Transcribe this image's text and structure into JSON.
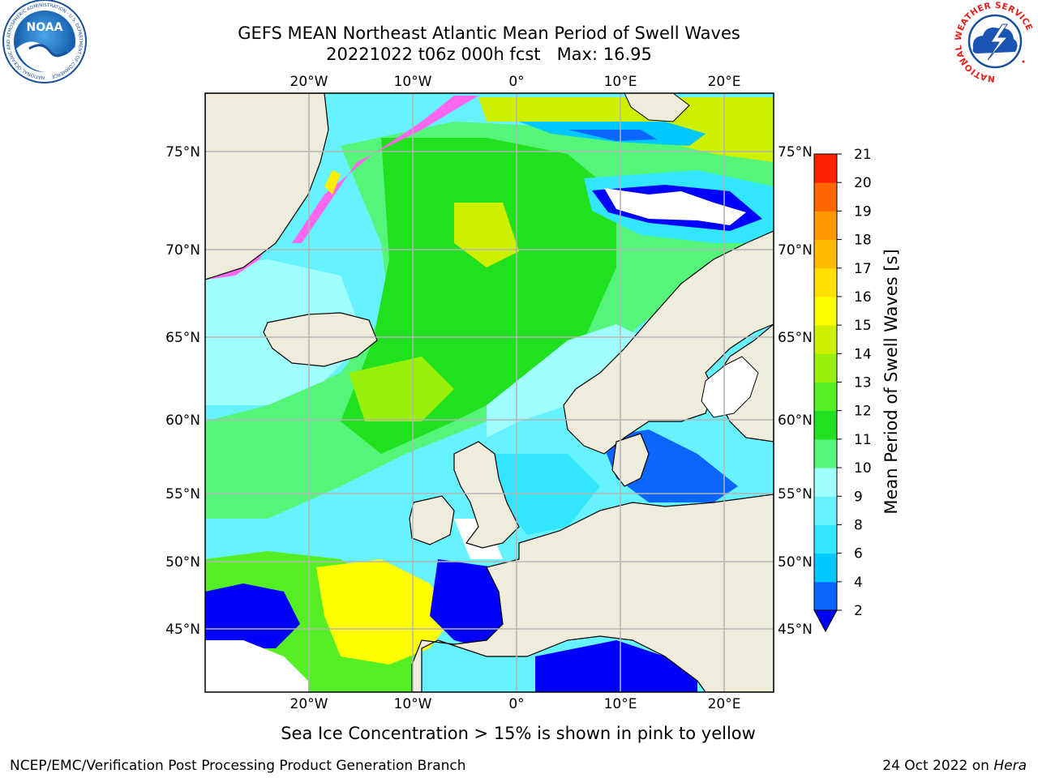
{
  "title": {
    "line1": "GEFS MEAN Northeast Atlantic Mean Period of Swell Waves",
    "line2": "20221022 t06z 000h fcst   Max: 16.95"
  },
  "map": {
    "lon_ticks_top": [
      "20°W",
      "10°W",
      "0°",
      "10°E",
      "20°E"
    ],
    "lon_ticks_bottom": [
      "20°W",
      "10°W",
      "0°",
      "10°E",
      "20°E"
    ],
    "lat_ticks_left": [
      "75°N",
      "70°N",
      "65°N",
      "60°N",
      "55°N",
      "50°N",
      "45°N"
    ],
    "lat_ticks_right": [
      "75°N",
      "70°N",
      "65°N",
      "60°N",
      "55°N",
      "50°N",
      "45°N"
    ],
    "land_color": "#efecdc",
    "grid_color": "#b4b4b4"
  },
  "colorbar": {
    "label": "Mean Period of Swell Waves [s]",
    "ticks": [
      "2",
      "4",
      "6",
      "8",
      "9",
      "10",
      "11",
      "12",
      "13",
      "14",
      "15",
      "16",
      "17",
      "18",
      "19",
      "20",
      "21"
    ],
    "colors": [
      "#0a66ff",
      "#00c8ff",
      "#33e6ff",
      "#66f2ff",
      "#a0ffff",
      "#55f57a",
      "#20e020",
      "#55ee22",
      "#99f00a",
      "#ccf000",
      "#ffff00",
      "#ffe000",
      "#ffbb00",
      "#ff9900",
      "#ff6600",
      "#ff2200"
    ],
    "extend_color": "#0000ff"
  },
  "subtitle": "Sea Ice Concentration > 15% is shown in pink to yellow",
  "footer": {
    "left": "NCEP/EMC/Verification Post Processing Product Generation Branch",
    "right_prefix": "24 Oct 2022 on ",
    "right_italic": "Hera"
  },
  "logos": {
    "left_text": "NOAA",
    "left_ring": "NATIONAL OCEANIC AND ATMOSPHERIC ADMINISTRATION · U.S. DEPARTMENT OF COMMERCE",
    "right_ring": "NATIONAL WEATHER SERVICE"
  }
}
